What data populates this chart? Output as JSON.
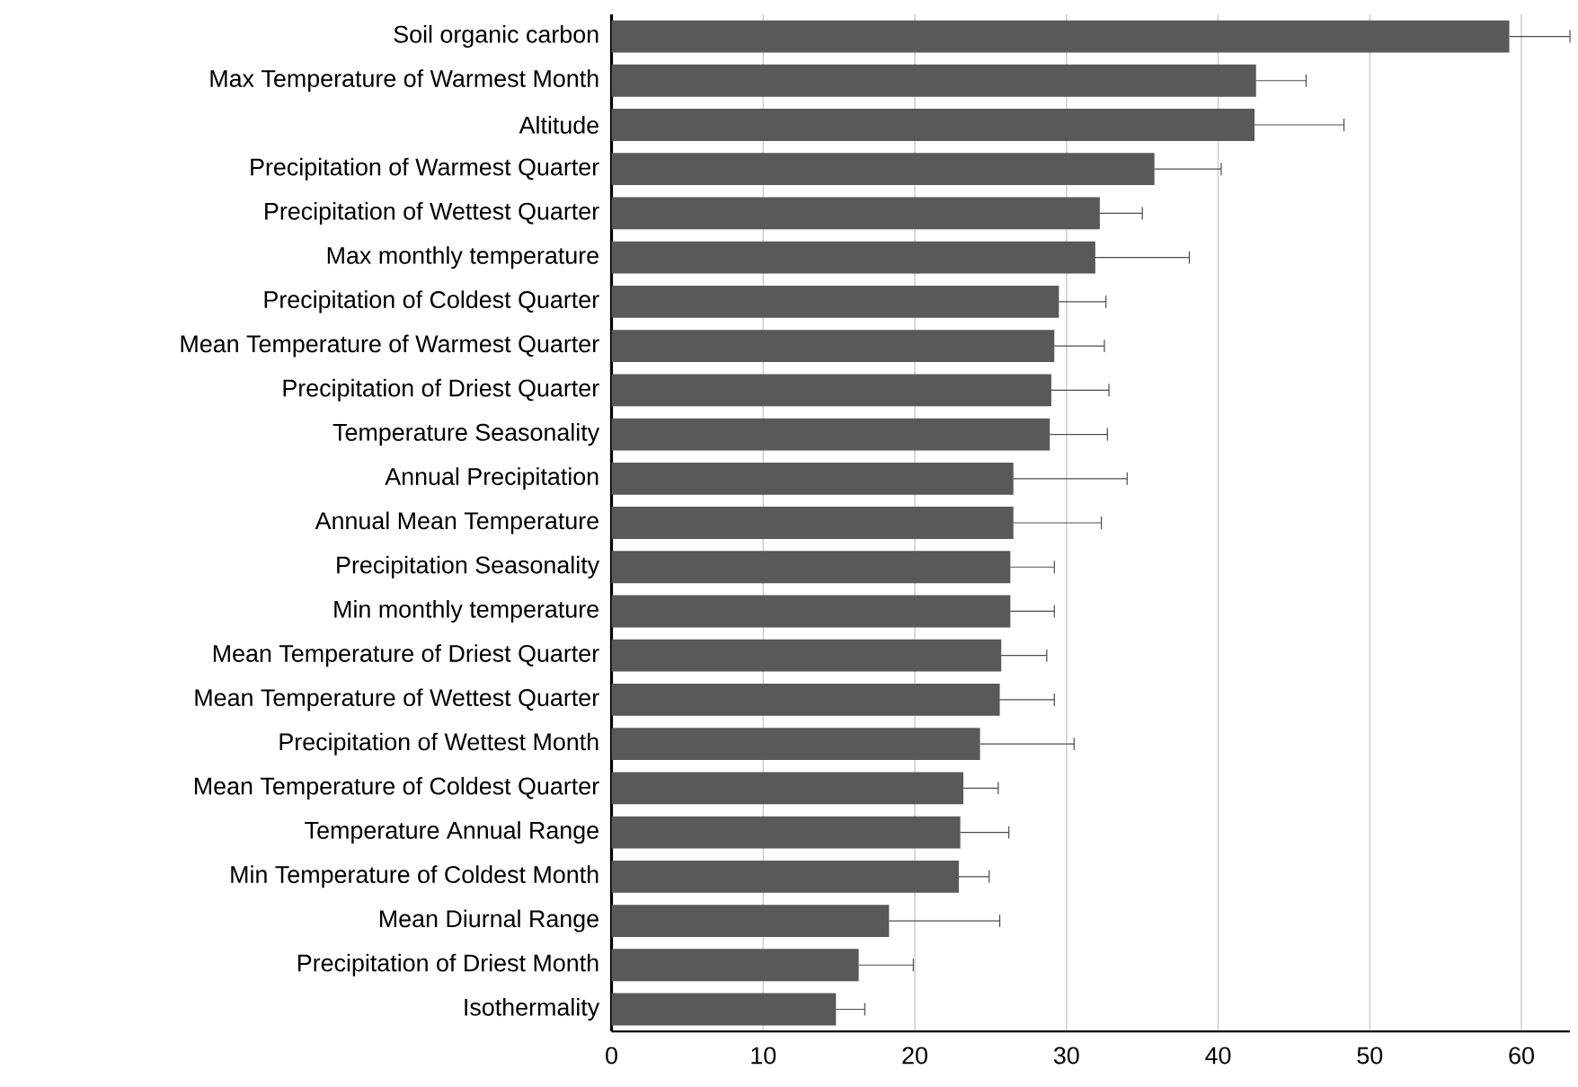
{
  "chart_data": {
    "type": "bar",
    "orientation": "horizontal",
    "grid": "x",
    "categories": [
      "Soil organic carbon",
      "Max Temperature of Warmest Month",
      "Altitude",
      "Precipitation of Warmest Quarter",
      "Precipitation of Wettest Quarter",
      "Max monthly temperature",
      "Precipitation of Coldest Quarter",
      "Mean Temperature of Warmest Quarter",
      "Precipitation of Driest Quarter",
      "Temperature Seasonality",
      "Annual Precipitation",
      "Annual Mean Temperature",
      "Precipitation Seasonality",
      "Min monthly temperature",
      "Mean Temperature of Driest Quarter",
      "Mean Temperature of Wettest Quarter",
      "Precipitation of Wettest Month",
      "Mean Temperature of Coldest Quarter",
      "Temperature Annual Range",
      "Min Temperature of Coldest Month",
      "Mean Diurnal Range",
      "Precipitation of Driest Month",
      "Isothermality"
    ],
    "values": [
      59.2,
      42.5,
      42.4,
      35.8,
      32.2,
      31.9,
      29.5,
      29.2,
      29.0,
      28.9,
      26.5,
      26.5,
      26.3,
      26.3,
      25.7,
      25.6,
      24.3,
      23.2,
      23.0,
      22.9,
      18.3,
      16.3,
      14.8
    ],
    "errors": [
      [
        59.2,
        63.2
      ],
      [
        42.5,
        45.8
      ],
      [
        42.4,
        48.3
      ],
      [
        35.8,
        40.2
      ],
      [
        32.2,
        35.0
      ],
      [
        31.9,
        38.1
      ],
      [
        29.5,
        32.6
      ],
      [
        29.2,
        32.5
      ],
      [
        29.0,
        32.8
      ],
      [
        28.9,
        32.7
      ],
      [
        26.5,
        34.0
      ],
      [
        26.5,
        32.3
      ],
      [
        26.3,
        29.2
      ],
      [
        26.3,
        29.2
      ],
      [
        25.7,
        28.7
      ],
      [
        25.6,
        29.2
      ],
      [
        24.3,
        30.5
      ],
      [
        23.2,
        25.5
      ],
      [
        23.0,
        26.2
      ],
      [
        22.9,
        24.9
      ],
      [
        18.3,
        25.6
      ],
      [
        16.3,
        19.9
      ],
      [
        14.8,
        16.7
      ]
    ],
    "color": "#595959",
    "xlim": [
      0,
      63.2
    ],
    "xticks": [
      0,
      10,
      20,
      30,
      40,
      50,
      60
    ]
  }
}
